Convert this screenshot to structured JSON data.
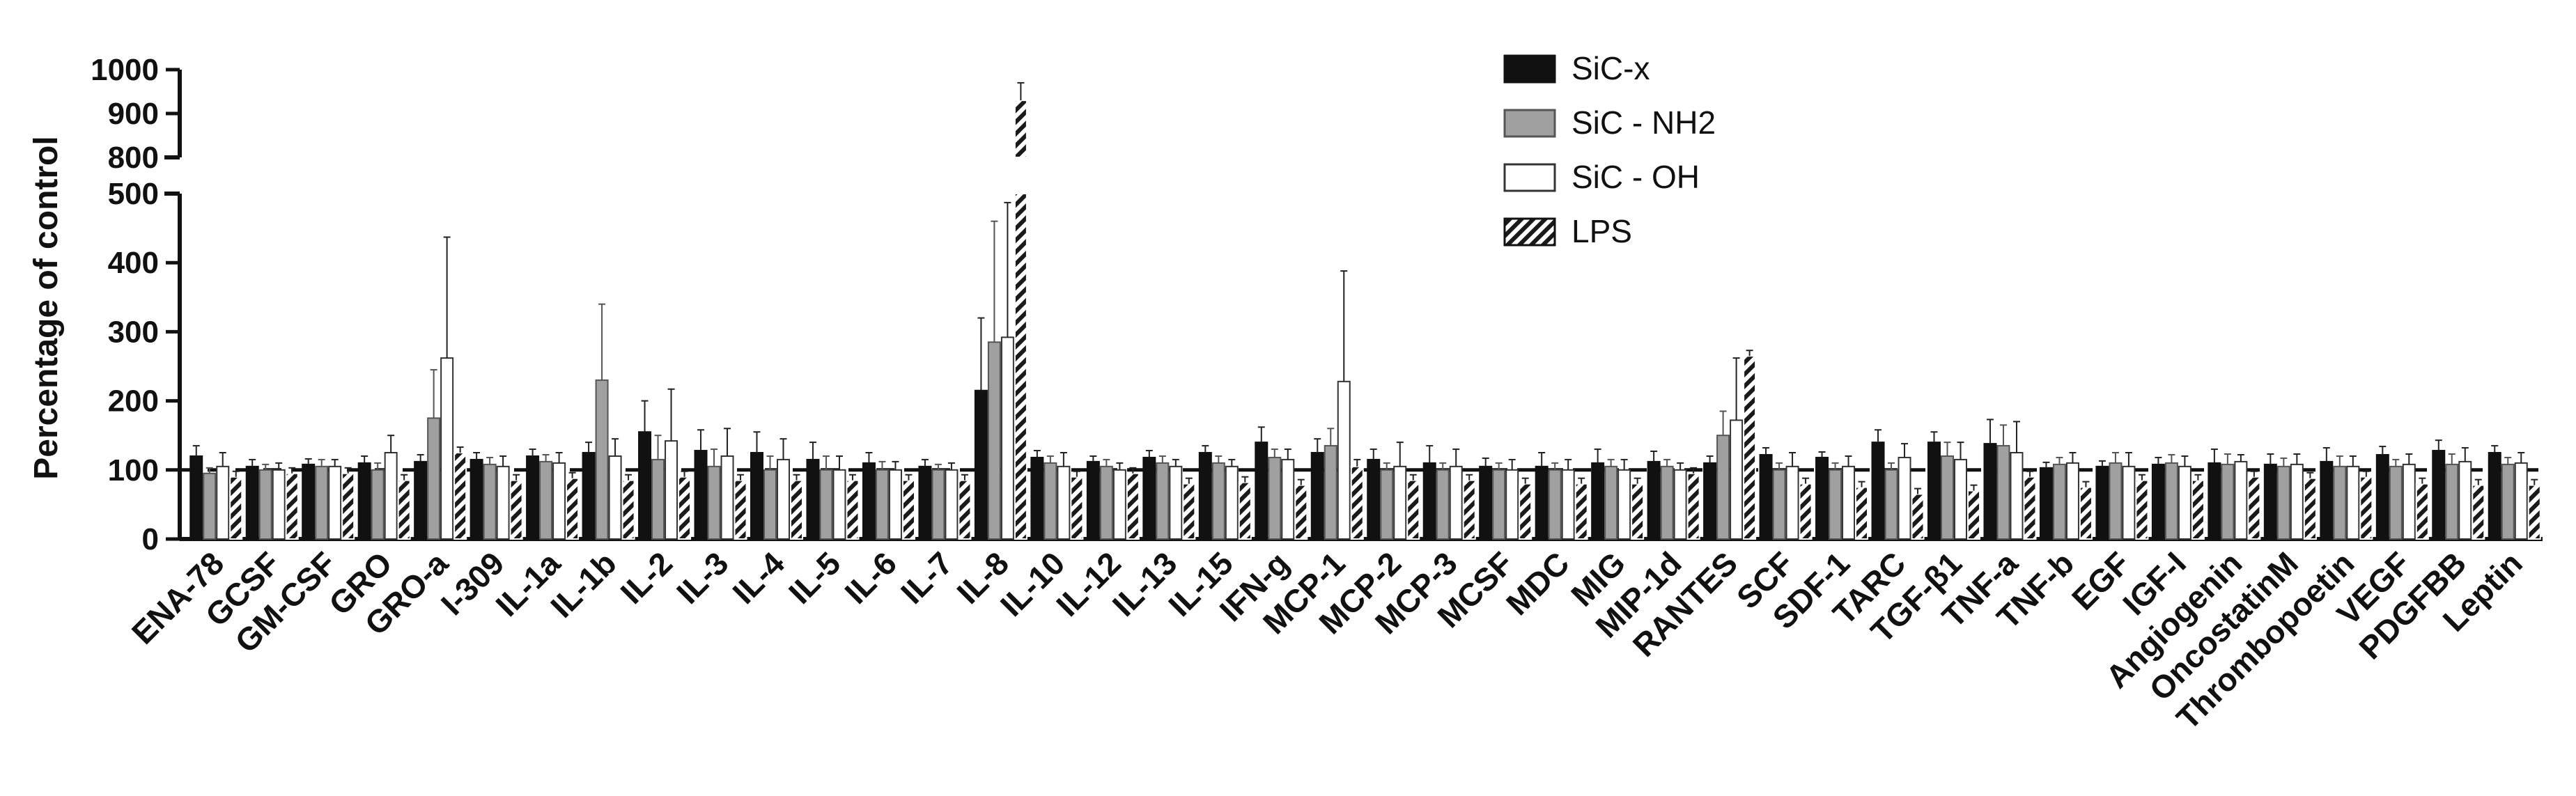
{
  "chart_data": {
    "type": "bar",
    "ylabel": "Percentage of control",
    "y_axis": {
      "broken": true,
      "lower_range": [
        0,
        500
      ],
      "upper_range": [
        800,
        1000
      ],
      "lower_ticks": [
        "0",
        "100",
        "200",
        "300",
        "400",
        "500"
      ],
      "upper_ticks": [
        "800",
        "900",
        "1000"
      ]
    },
    "reference_line": 100,
    "legend_position": "top-center",
    "categories": [
      "ENA-78",
      "GCSF",
      "GM-CSF",
      "GRO",
      "GRO-a",
      "I-309",
      "IL-1a",
      "IL-1b",
      "IL-2",
      "IL-3",
      "IL-4",
      "IL-5",
      "IL-6",
      "IL-7",
      "IL-8",
      "IL-10",
      "IL-12",
      "IL-13",
      "IL-15",
      "IFN-g",
      "MCP-1",
      "MCP-2",
      "MCP-3",
      "MCSF",
      "MDC",
      "MIG",
      "MIP-1d",
      "RANTES",
      "SCF",
      "SDF-1",
      "TARC",
      "TGF-β1",
      "TNF-a",
      "TNF-b",
      "EGF",
      "IGF-I",
      "Angiogenin",
      "OncostatinM",
      "Thrombopoetin",
      "VEGF",
      "PDGFBB",
      "Leptin"
    ],
    "series": [
      {
        "name": "SiC-x",
        "pattern": "solid-black",
        "values": [
          120,
          105,
          108,
          110,
          112,
          115,
          120,
          125,
          155,
          128,
          125,
          115,
          110,
          105,
          215,
          118,
          112,
          118,
          125,
          140,
          125,
          115,
          110,
          105,
          105,
          110,
          112,
          110,
          122,
          118,
          140,
          140,
          138,
          103,
          105,
          108,
          110,
          108,
          112,
          122,
          128,
          125
        ],
        "errors": [
          15,
          10,
          8,
          10,
          10,
          10,
          10,
          15,
          45,
          30,
          30,
          25,
          15,
          10,
          105,
          10,
          8,
          10,
          10,
          22,
          20,
          15,
          25,
          12,
          20,
          20,
          15,
          10,
          10,
          8,
          18,
          15,
          35,
          8,
          8,
          10,
          20,
          15,
          20,
          12,
          15,
          10
        ]
      },
      {
        "name": "SiC - NH2",
        "pattern": "solid-gray",
        "values": [
          95,
          100,
          105,
          100,
          175,
          108,
          112,
          230,
          115,
          105,
          100,
          100,
          100,
          100,
          285,
          110,
          105,
          110,
          110,
          118,
          135,
          100,
          100,
          100,
          100,
          105,
          105,
          150,
          100,
          100,
          100,
          120,
          135,
          108,
          110,
          110,
          108,
          105,
          105,
          105,
          108,
          108
        ],
        "errors": [
          8,
          8,
          10,
          10,
          70,
          10,
          10,
          110,
          35,
          25,
          20,
          20,
          12,
          8,
          175,
          10,
          10,
          10,
          10,
          12,
          25,
          10,
          10,
          10,
          10,
          10,
          10,
          35,
          10,
          10,
          10,
          20,
          30,
          10,
          15,
          12,
          15,
          12,
          15,
          10,
          15,
          10
        ],
        "color": "#a0a0a0"
      },
      {
        "name": "SiC - OH",
        "pattern": "outline-white",
        "values": [
          105,
          100,
          105,
          125,
          262,
          105,
          110,
          120,
          142,
          120,
          115,
          100,
          100,
          100,
          292,
          105,
          100,
          105,
          105,
          115,
          228,
          105,
          105,
          100,
          100,
          100,
          100,
          172,
          105,
          105,
          118,
          115,
          125,
          110,
          105,
          105,
          112,
          108,
          105,
          108,
          112,
          110
        ],
        "errors": [
          20,
          10,
          10,
          25,
          175,
          15,
          15,
          25,
          75,
          40,
          30,
          20,
          12,
          10,
          195,
          20,
          10,
          10,
          10,
          15,
          160,
          35,
          25,
          15,
          15,
          15,
          10,
          90,
          20,
          15,
          20,
          25,
          45,
          15,
          20,
          15,
          10,
          15,
          15,
          15,
          20,
          15
        ]
      },
      {
        "name": "LPS",
        "pattern": "diagonal-hatch",
        "values": [
          90,
          95,
          95,
          85,
          125,
          85,
          88,
          85,
          90,
          85,
          85,
          85,
          85,
          85,
          930,
          90,
          95,
          80,
          82,
          78,
          105,
          85,
          85,
          80,
          80,
          80,
          95,
          265,
          80,
          75,
          65,
          70,
          90,
          75,
          85,
          85,
          90,
          88,
          90,
          80,
          78,
          78
        ],
        "errors": [
          8,
          8,
          8,
          8,
          8,
          8,
          8,
          8,
          8,
          8,
          8,
          8,
          8,
          8,
          40,
          8,
          8,
          8,
          8,
          8,
          10,
          8,
          8,
          8,
          8,
          8,
          8,
          8,
          8,
          8,
          8,
          8,
          8,
          8,
          8,
          8,
          8,
          8,
          8,
          8,
          8,
          8
        ]
      }
    ]
  }
}
